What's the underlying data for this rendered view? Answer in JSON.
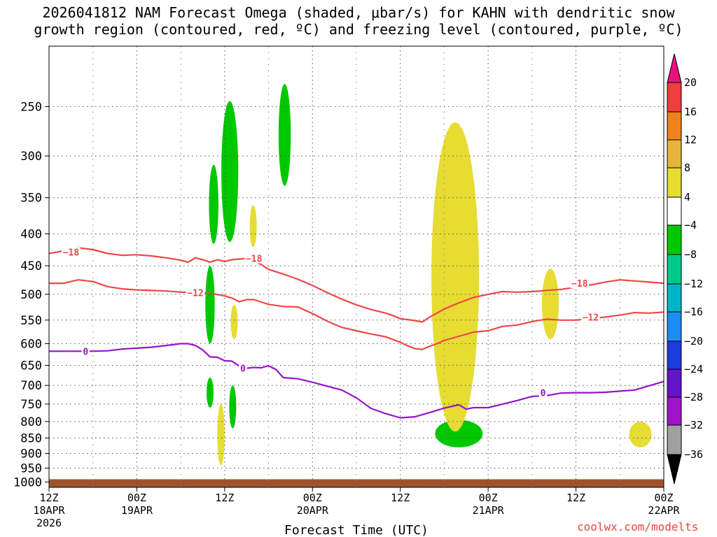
{
  "page": {
    "title_line1": "2026041812 NAM Forecast Omega (shaded, μbar/s) for KAHN with dendritic snow",
    "title_line2": "growth region (contoured, red, ºC) and freezing level (contoured, purple, ºC)",
    "credit": "coolwx.com/modelts"
  },
  "chart_data": {
    "type": "time-height",
    "title": "2026041812 NAM Forecast Omega (shaded, μbar/s) for KAHN with dendritic snow growth region (contoured, red, ºC) and freezing level (contoured, purple, ºC)",
    "xlabel": "Forecast Time (UTC)",
    "x_unit": "hours since 2026-04-18 12Z",
    "xlim": [
      0,
      84
    ],
    "x_ticks": [
      {
        "h": 0,
        "line1": "12Z",
        "line2": "18APR",
        "line3": "2026"
      },
      {
        "h": 12,
        "line1": "00Z",
        "line2": "19APR"
      },
      {
        "h": 24,
        "line1": "12Z",
        "line2": ""
      },
      {
        "h": 36,
        "line1": "00Z",
        "line2": "20APR"
      },
      {
        "h": 48,
        "line1": "12Z",
        "line2": ""
      },
      {
        "h": 60,
        "line1": "00Z",
        "line2": "21APR"
      },
      {
        "h": 72,
        "line1": "12Z",
        "line2": ""
      },
      {
        "h": 84,
        "line1": "00Z",
        "line2": "22APR"
      }
    ],
    "y_unit": "hPa",
    "ylim": [
      1020,
      200
    ],
    "y_scale": "log",
    "y_ticks": [
      250,
      300,
      350,
      400,
      450,
      500,
      550,
      600,
      650,
      700,
      750,
      800,
      850,
      900,
      950,
      1000
    ],
    "grid": true,
    "colorbar": {
      "labels": [
        "20",
        "16",
        "12",
        "8",
        "4",
        "−4",
        "−8",
        "−12",
        "−16",
        "−20",
        "−24",
        "−28",
        "−32",
        "−36"
      ],
      "bands": [
        {
          "lo": 16,
          "hi": 20,
          "color": "#f03c3c"
        },
        {
          "lo": 12,
          "hi": 16,
          "color": "#f0821e"
        },
        {
          "lo": 8,
          "hi": 12,
          "color": "#e6b43c"
        },
        {
          "lo": 4,
          "hi": 8,
          "color": "#e6dc32"
        },
        {
          "lo": -4,
          "hi": 4,
          "color": "#ffffff"
        },
        {
          "lo": -8,
          "hi": -4,
          "color": "#00c800"
        },
        {
          "lo": -12,
          "hi": -8,
          "color": "#00c88c"
        },
        {
          "lo": -16,
          "hi": -12,
          "color": "#00b4c8"
        },
        {
          "lo": -20,
          "hi": -16,
          "color": "#1e8cf0"
        },
        {
          "lo": -24,
          "hi": -20,
          "color": "#1e3cdc"
        },
        {
          "lo": -28,
          "hi": -24,
          "color": "#6414c8"
        },
        {
          "lo": -32,
          "hi": -28,
          "color": "#a014c8"
        },
        {
          "lo": -36,
          "hi": -32,
          "color": "#a0a0a0"
        }
      ],
      "top_triangle_color": "#e6147a",
      "bottom_triangle_color": "#000000"
    },
    "contours": [
      {
        "name": "-18C isotherm",
        "color": "#f04646",
        "label": "−18",
        "labels": [
          {
            "h": 3,
            "p": 428
          },
          {
            "h": 28,
            "p": 438
          },
          {
            "h": 72.5,
            "p": 480
          }
        ],
        "points": [
          [
            0,
            430
          ],
          [
            2,
            426
          ],
          [
            4,
            421
          ],
          [
            6,
            424
          ],
          [
            8,
            430
          ],
          [
            10,
            433
          ],
          [
            12,
            432
          ],
          [
            14,
            434
          ],
          [
            16,
            437
          ],
          [
            18,
            441
          ],
          [
            19,
            444
          ],
          [
            20,
            437
          ],
          [
            21,
            440
          ],
          [
            22,
            444
          ],
          [
            23,
            440
          ],
          [
            24,
            443
          ],
          [
            25,
            440
          ],
          [
            26,
            439
          ],
          [
            27,
            438
          ],
          [
            28,
            442
          ],
          [
            29,
            448
          ],
          [
            30,
            456
          ],
          [
            32,
            464
          ],
          [
            34,
            473
          ],
          [
            36,
            484
          ],
          [
            38,
            497
          ],
          [
            40,
            509
          ],
          [
            42,
            520
          ],
          [
            44,
            529
          ],
          [
            46,
            536
          ],
          [
            47,
            541
          ],
          [
            48,
            547
          ],
          [
            49,
            549
          ],
          [
            50,
            551
          ],
          [
            51,
            554
          ],
          [
            52,
            544
          ],
          [
            53,
            536
          ],
          [
            54,
            528
          ],
          [
            56,
            516
          ],
          [
            58,
            506
          ],
          [
            60,
            500
          ],
          [
            62,
            495
          ],
          [
            64,
            496
          ],
          [
            66,
            495
          ],
          [
            68,
            493
          ],
          [
            70,
            491
          ],
          [
            72,
            487
          ],
          [
            74,
            483
          ],
          [
            76,
            478
          ],
          [
            78,
            474
          ],
          [
            80,
            476
          ],
          [
            82,
            478
          ],
          [
            84,
            480
          ]
        ]
      },
      {
        "name": "-12C isotherm",
        "color": "#f04646",
        "label": "−12",
        "labels": [
          {
            "h": 20,
            "p": 497
          },
          {
            "h": 74,
            "p": 544
          }
        ],
        "points": [
          [
            0,
            480
          ],
          [
            2,
            480
          ],
          [
            4,
            474
          ],
          [
            6,
            477
          ],
          [
            8,
            486
          ],
          [
            10,
            490
          ],
          [
            12,
            492
          ],
          [
            14,
            493
          ],
          [
            16,
            494
          ],
          [
            18,
            496
          ],
          [
            20,
            497
          ],
          [
            22,
            498
          ],
          [
            24,
            503
          ],
          [
            25,
            507
          ],
          [
            26,
            514
          ],
          [
            27,
            510
          ],
          [
            28,
            510
          ],
          [
            30,
            519
          ],
          [
            32,
            523
          ],
          [
            34,
            524
          ],
          [
            36,
            537
          ],
          [
            38,
            552
          ],
          [
            40,
            565
          ],
          [
            42,
            572
          ],
          [
            44,
            579
          ],
          [
            46,
            585
          ],
          [
            48,
            597
          ],
          [
            49,
            605
          ],
          [
            50,
            611
          ],
          [
            51,
            613
          ],
          [
            52,
            606
          ],
          [
            53,
            600
          ],
          [
            54,
            593
          ],
          [
            56,
            584
          ],
          [
            58,
            575
          ],
          [
            60,
            572
          ],
          [
            62,
            563
          ],
          [
            64,
            560
          ],
          [
            66,
            553
          ],
          [
            68,
            548
          ],
          [
            70,
            550
          ],
          [
            72,
            550
          ],
          [
            74,
            547
          ],
          [
            76,
            544
          ],
          [
            78,
            540
          ],
          [
            80,
            535
          ],
          [
            82,
            536
          ],
          [
            84,
            534
          ]
        ]
      },
      {
        "name": "0C freezing level",
        "color": "#9614c8",
        "label": "0",
        "labels": [
          {
            "h": 5,
            "p": 617
          },
          {
            "h": 26.5,
            "p": 657
          },
          {
            "h": 67.5,
            "p": 719
          }
        ],
        "points": [
          [
            0,
            617
          ],
          [
            2,
            617
          ],
          [
            4,
            617
          ],
          [
            6,
            617
          ],
          [
            8,
            616
          ],
          [
            10,
            612
          ],
          [
            12,
            610
          ],
          [
            14,
            608
          ],
          [
            16,
            604
          ],
          [
            18,
            600
          ],
          [
            19,
            600
          ],
          [
            20,
            604
          ],
          [
            21,
            614
          ],
          [
            22,
            630
          ],
          [
            23,
            631
          ],
          [
            24,
            639
          ],
          [
            25,
            640
          ],
          [
            26,
            652
          ],
          [
            27,
            657
          ],
          [
            28,
            655
          ],
          [
            29,
            656
          ],
          [
            30,
            651
          ],
          [
            31,
            660
          ],
          [
            32,
            680
          ],
          [
            34,
            683
          ],
          [
            36,
            692
          ],
          [
            38,
            702
          ],
          [
            40,
            712
          ],
          [
            42,
            733
          ],
          [
            44,
            762
          ],
          [
            46,
            777
          ],
          [
            48,
            789
          ],
          [
            50,
            786
          ],
          [
            52,
            774
          ],
          [
            54,
            761
          ],
          [
            56,
            752
          ],
          [
            57,
            764
          ],
          [
            58,
            760
          ],
          [
            60,
            760
          ],
          [
            62,
            750
          ],
          [
            64,
            740
          ],
          [
            66,
            729
          ],
          [
            68,
            727
          ],
          [
            70,
            720
          ],
          [
            72,
            719
          ],
          [
            74,
            719
          ],
          [
            76,
            718
          ],
          [
            78,
            715
          ],
          [
            80,
            712
          ],
          [
            82,
            701
          ],
          [
            84,
            690
          ]
        ]
      }
    ],
    "shaded_regions": [
      {
        "sign": "upward (negative omega)",
        "range": "-8 to -4",
        "color": "#00c800",
        "h_center": 22.5,
        "p_top": 310,
        "p_bottom": 415
      },
      {
        "sign": "upward (negative omega)",
        "range": "-8 to -4",
        "color": "#00c800",
        "h_center": 24.7,
        "p_top": 245,
        "p_bottom": 412
      },
      {
        "sign": "upward (negative omega)",
        "range": "-8 to -4",
        "color": "#00c800",
        "h_center": 32.2,
        "p_top": 230,
        "p_bottom": 335
      },
      {
        "sign": "upward (negative omega)",
        "range": "-8 to -4",
        "color": "#00c800",
        "h_center": 22,
        "p_top": 450,
        "p_bottom": 600
      },
      {
        "sign": "upward (negative omega)",
        "range": "-8 to -4",
        "color": "#00c800",
        "h_center": 22,
        "p_top": 680,
        "p_bottom": 760
      },
      {
        "sign": "upward (negative omega)",
        "range": "-8 to -4",
        "color": "#00c800",
        "h_center": 25.1,
        "p_top": 700,
        "p_bottom": 820
      },
      {
        "sign": "upward (negative omega)",
        "range": "-8 to -4",
        "color": "#00c800",
        "h_center": 56,
        "p_top": 795,
        "p_bottom": 880
      },
      {
        "sign": "downward (positive omega)",
        "range": "4 to 8",
        "color": "#e6dc32",
        "h_center": 55.5,
        "p_top": 265,
        "p_bottom": 830
      },
      {
        "sign": "downward (positive omega)",
        "range": "4 to 8",
        "color": "#e6dc32",
        "h_center": 27.9,
        "p_top": 360,
        "p_bottom": 420
      },
      {
        "sign": "downward (positive omega)",
        "range": "4 to 8",
        "color": "#e6dc32",
        "h_center": 25.3,
        "p_top": 520,
        "p_bottom": 590
      },
      {
        "sign": "downward (positive omega)",
        "range": "4 to 8",
        "color": "#e6dc32",
        "h_center": 23.5,
        "p_top": 750,
        "p_bottom": 940
      },
      {
        "sign": "downward (positive omega)",
        "range": "4 to 8",
        "color": "#e6dc32",
        "h_center": 68.5,
        "p_top": 455,
        "p_bottom": 590
      },
      {
        "sign": "downward (positive omega)",
        "range": "4 to 8",
        "color": "#e6dc32",
        "h_center": 80.8,
        "p_top": 800,
        "p_bottom": 880
      }
    ],
    "terrain": {
      "color": "#a0522d",
      "surface_pressure_hpa": 990
    }
  }
}
